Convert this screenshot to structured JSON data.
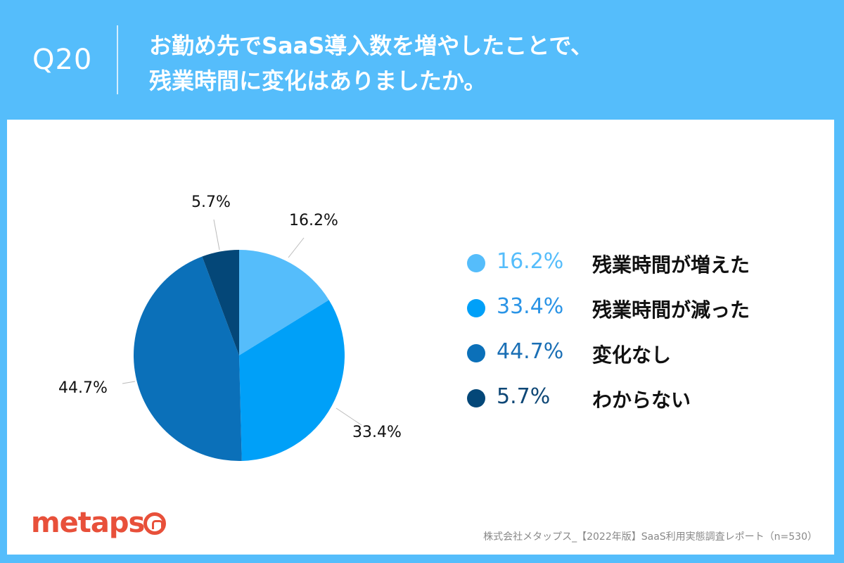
{
  "header": {
    "qnum": "Q20",
    "title_line1": "お勤め先でSaaS導入数を増やしたことで、",
    "title_line2": "残業時間に変化はありましたか。"
  },
  "chart_data": {
    "type": "pie",
    "slices": [
      {
        "label": "残業時間が増えた",
        "value": 16.2,
        "value_label": "16.2%",
        "color": "#55bdfb"
      },
      {
        "label": "残業時間が減った",
        "value": 33.4,
        "value_label": "33.4%",
        "color": "#00a0f8"
      },
      {
        "label": "変化なし",
        "value": 44.7,
        "value_label": "44.7%",
        "color": "#0b70b9"
      },
      {
        "label": "わからない",
        "value": 5.7,
        "value_label": "5.7%",
        "color": "#044778"
      }
    ],
    "legend_placement": "right",
    "legend_text_colors": [
      "#55bdfb",
      "#2a94e6",
      "#1a6fb5",
      "#0e4776"
    ]
  },
  "footer": {
    "logo": "metaps",
    "source": "株式会社メタップス_【2022年版】SaaS利用実態調査レポート（n=530）"
  }
}
